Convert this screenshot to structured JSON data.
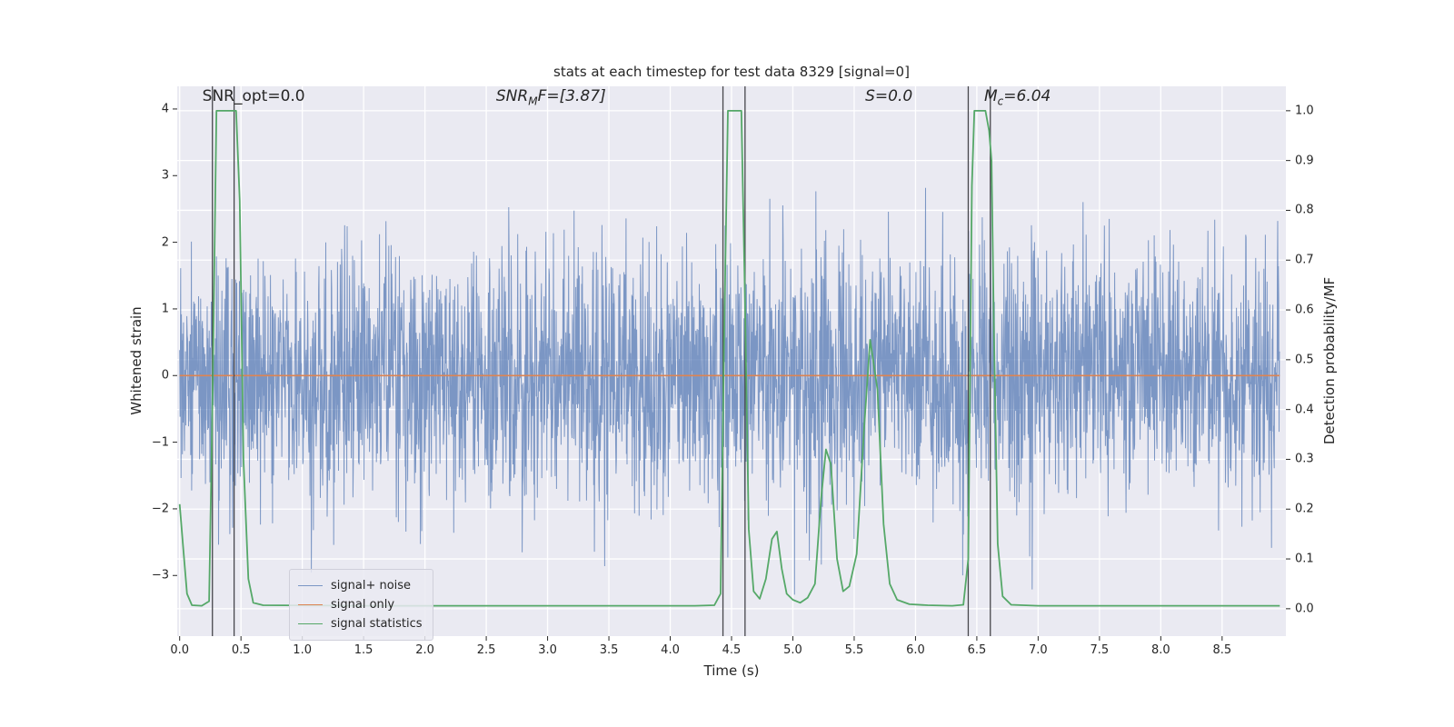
{
  "chart_data": {
    "type": "line",
    "title": "stats at each timestep for test data 8329 [signal=0]",
    "xlabel": "Time (s)",
    "ylabel_left": "Whitened strain",
    "ylabel_right": "Detection probability/MF",
    "xlim": [
      -0.02,
      9.02
    ],
    "ylim_left": [
      -3.91,
      4.34
    ],
    "ylim_right": [
      -0.055,
      1.049
    ],
    "grid": true,
    "xticks": [
      0,
      0.5,
      1,
      1.5,
      2,
      2.5,
      3,
      3.5,
      4,
      4.5,
      5,
      5.5,
      6,
      6.5,
      7,
      7.5,
      8,
      8.5
    ],
    "xtick_labels": [
      "0.0",
      "0.5",
      "1.0",
      "1.5",
      "2.0",
      "2.5",
      "3.0",
      "3.5",
      "4.0",
      "4.5",
      "5.0",
      "5.5",
      "6.0",
      "6.5",
      "7.0",
      "7.5",
      "8.0",
      "8.5"
    ],
    "yticks_left": [
      4,
      3,
      2,
      1,
      0,
      -1,
      -2,
      -3
    ],
    "ytick_labels_left": [
      "4",
      "3",
      "2",
      "1",
      "0",
      "−1",
      "−2",
      "−3"
    ],
    "yticks_right": [
      1.0,
      0.9,
      0.8,
      0.7,
      0.6,
      0.5,
      0.4,
      0.3,
      0.2,
      0.1,
      0.0
    ],
    "ytick_labels_right": [
      "1.0",
      "0.9",
      "0.8",
      "0.7",
      "0.6",
      "0.5",
      "0.4",
      "0.3",
      "0.2",
      "0.1",
      "0.0"
    ],
    "annotations": [
      {
        "x": 0.185,
        "y": 1.0,
        "text": "SNR_opt=0.0",
        "math": false
      },
      {
        "x": 2.58,
        "y": 1.0,
        "text": "SNR_{M}F=[3.87]",
        "math": true
      },
      {
        "x": 5.59,
        "y": 1.0,
        "text": "S=0.0",
        "math": true
      },
      {
        "x": 6.56,
        "y": 1.0,
        "text": "M_{c}=6.04",
        "math": true
      }
    ],
    "vlines": {
      "x": [
        0.267,
        0.444,
        4.43,
        4.61,
        6.43,
        6.61
      ],
      "color": "#46464c"
    },
    "legend": {
      "position": "lower left",
      "items": [
        {
          "label": "signal+ noise",
          "series": "noise"
        },
        {
          "label": "signal only",
          "series": "signal"
        },
        {
          "label": "signal statistics",
          "series": "stats"
        }
      ]
    },
    "series": {
      "noise": {
        "name": "signal+ noise",
        "axis": "left",
        "color": "#4C72B0",
        "opacity": 0.7,
        "generator": {
          "kind": "gaussian",
          "seed": 8329,
          "n": 3200,
          "std": 0.95,
          "x_start": 0.0,
          "x_end": 8.97
        }
      },
      "signal": {
        "name": "signal only",
        "axis": "left",
        "color": "#DD8452",
        "constant": 0.0,
        "x_start": 0.0,
        "x_end": 8.97
      },
      "stats": {
        "name": "signal statistics",
        "axis": "right",
        "color": "#55A868",
        "points": [
          [
            0.0,
            0.21
          ],
          [
            0.03,
            0.12
          ],
          [
            0.06,
            0.03
          ],
          [
            0.1,
            0.007
          ],
          [
            0.18,
            0.006
          ],
          [
            0.24,
            0.015
          ],
          [
            0.27,
            0.45
          ],
          [
            0.3,
            1.0
          ],
          [
            0.46,
            1.0
          ],
          [
            0.49,
            0.82
          ],
          [
            0.52,
            0.3
          ],
          [
            0.56,
            0.06
          ],
          [
            0.6,
            0.012
          ],
          [
            0.68,
            0.007
          ],
          [
            1.5,
            0.006
          ],
          [
            2.5,
            0.006
          ],
          [
            3.5,
            0.006
          ],
          [
            4.2,
            0.006
          ],
          [
            4.36,
            0.007
          ],
          [
            4.41,
            0.03
          ],
          [
            4.44,
            0.55
          ],
          [
            4.47,
            1.0
          ],
          [
            4.58,
            1.0
          ],
          [
            4.61,
            0.62
          ],
          [
            4.64,
            0.16
          ],
          [
            4.68,
            0.035
          ],
          [
            4.73,
            0.02
          ],
          [
            4.78,
            0.06
          ],
          [
            4.83,
            0.14
          ],
          [
            4.87,
            0.155
          ],
          [
            4.91,
            0.08
          ],
          [
            4.95,
            0.03
          ],
          [
            5.0,
            0.018
          ],
          [
            5.06,
            0.012
          ],
          [
            5.12,
            0.022
          ],
          [
            5.18,
            0.05
          ],
          [
            5.23,
            0.22
          ],
          [
            5.27,
            0.32
          ],
          [
            5.31,
            0.29
          ],
          [
            5.36,
            0.1
          ],
          [
            5.41,
            0.035
          ],
          [
            5.46,
            0.045
          ],
          [
            5.52,
            0.11
          ],
          [
            5.58,
            0.36
          ],
          [
            5.63,
            0.54
          ],
          [
            5.69,
            0.44
          ],
          [
            5.74,
            0.17
          ],
          [
            5.79,
            0.05
          ],
          [
            5.85,
            0.018
          ],
          [
            5.95,
            0.009
          ],
          [
            6.1,
            0.007
          ],
          [
            6.3,
            0.006
          ],
          [
            6.39,
            0.008
          ],
          [
            6.43,
            0.1
          ],
          [
            6.46,
            0.85
          ],
          [
            6.48,
            1.0
          ],
          [
            6.57,
            1.0
          ],
          [
            6.6,
            0.96
          ],
          [
            6.62,
            0.9
          ],
          [
            6.64,
            0.55
          ],
          [
            6.67,
            0.13
          ],
          [
            6.71,
            0.025
          ],
          [
            6.78,
            0.008
          ],
          [
            7.0,
            0.006
          ],
          [
            7.5,
            0.006
          ],
          [
            8.2,
            0.006
          ],
          [
            8.97,
            0.006
          ]
        ]
      }
    },
    "colors": {
      "background": "#EAEAF2",
      "grid": "#FFFFFF",
      "text": "#262626",
      "tick": "#262626"
    }
  }
}
